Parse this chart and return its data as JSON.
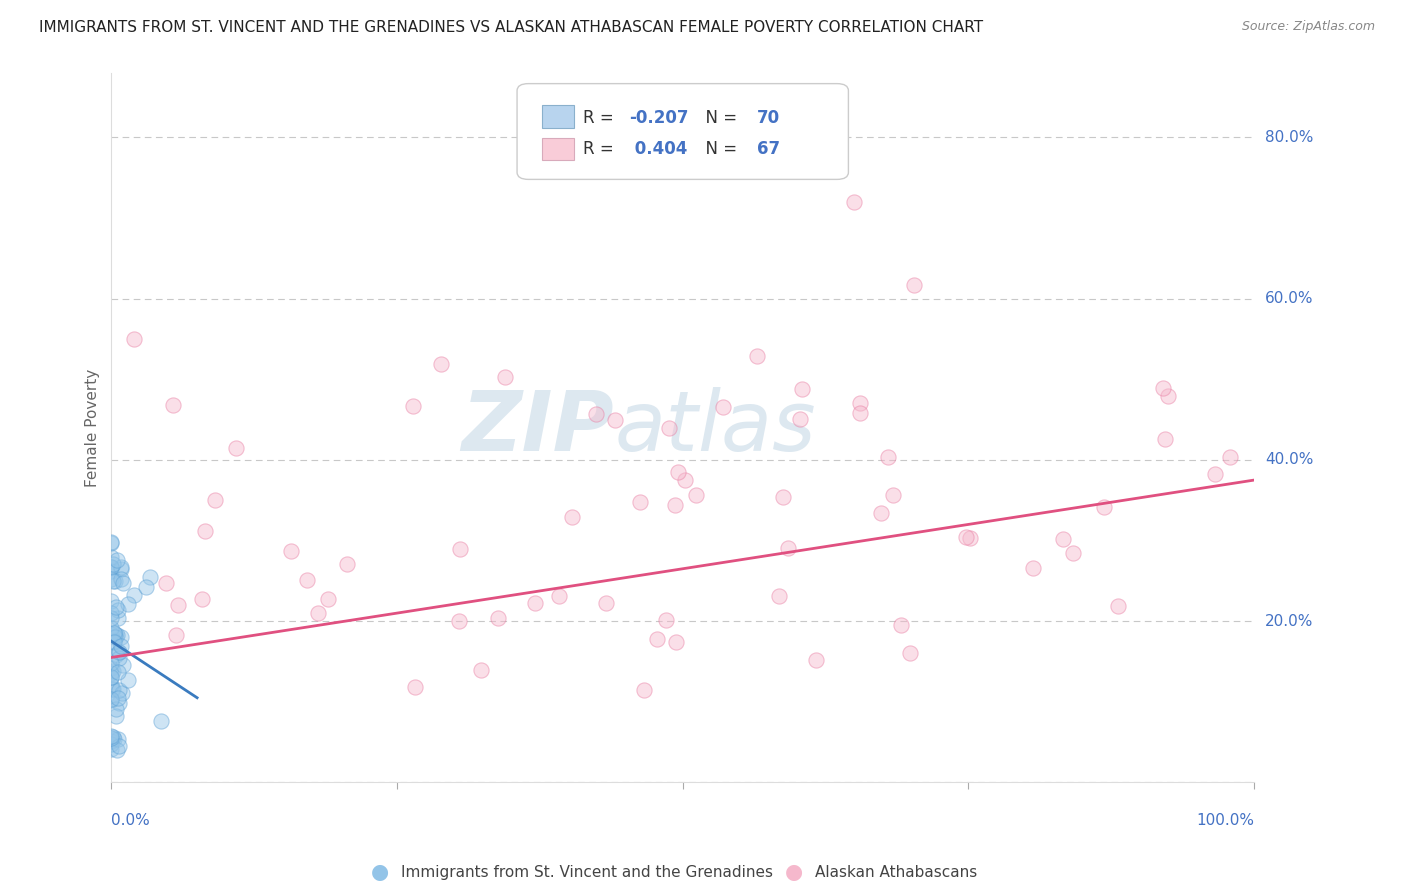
{
  "title": "IMMIGRANTS FROM ST. VINCENT AND THE GRENADINES VS ALASKAN ATHABASCAN FEMALE POVERTY CORRELATION CHART",
  "source": "Source: ZipAtlas.com",
  "xlabel_bottom_left": "0.0%",
  "xlabel_bottom_right": "100.0%",
  "ylabel": "Female Poverty",
  "y_ticks": [
    0.0,
    0.2,
    0.4,
    0.6,
    0.8
  ],
  "y_tick_labels": [
    "",
    "20.0%",
    "40.0%",
    "60.0%",
    "80.0%"
  ],
  "x_range": [
    0.0,
    1.0
  ],
  "y_range": [
    0.0,
    0.88
  ],
  "R_blue": -0.207,
  "N_blue": 70,
  "R_pink": 0.404,
  "N_pink": 67,
  "scatter_size": 120,
  "scatter_alpha": 0.45,
  "blue_color": "#93c4e8",
  "pink_color": "#f5b8cc",
  "blue_edge_color": "#5a9fd4",
  "pink_edge_color": "#e87aa0",
  "blue_trend_color": "#3a7bbf",
  "pink_trend_color": "#e05080",
  "grid_color": "#c8c8c8",
  "background_color": "#ffffff",
  "watermark_zip": "ZIP",
  "watermark_atlas": "atlas",
  "watermark_color": "#dde8f0",
  "bottom_label_blue": "Immigrants from St. Vincent and the Grenadines",
  "bottom_label_pink": "Alaskan Athabascans",
  "legend_label_blue": "R = -0.207   N = 70",
  "legend_label_pink": "R =  0.404   N = 67"
}
